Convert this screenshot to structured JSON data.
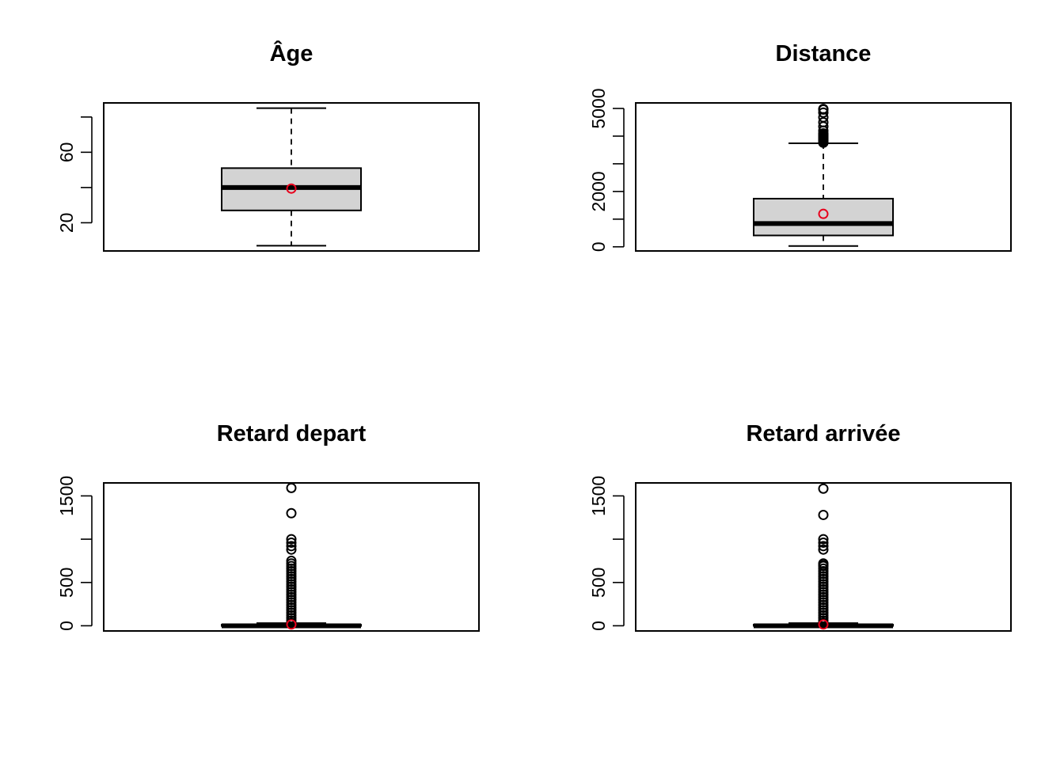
{
  "colors": {
    "box_fill": "#d3d3d3",
    "mean_point": "#e8001c",
    "stroke": "#000000",
    "background": "#ffffff"
  },
  "chart_data": [
    {
      "type": "boxplot",
      "title": "Âge",
      "xlabel": "",
      "ylabel": "",
      "ylim": [
        4,
        88
      ],
      "yticks": [
        20,
        40,
        60,
        80
      ],
      "ytick_labels": [
        "20",
        "",
        "60",
        ""
      ],
      "min": 7,
      "q1": 27,
      "median": 40,
      "q3": 51,
      "max": 85,
      "mean": 39.4,
      "outliers": []
    },
    {
      "type": "boxplot",
      "title": "Distance",
      "xlabel": "",
      "ylabel": "",
      "ylim": [
        -150,
        5200
      ],
      "yticks": [
        0,
        1000,
        2000,
        3000,
        4000,
        5000
      ],
      "ytick_labels": [
        "0",
        "",
        "2000",
        "",
        "",
        "5000"
      ],
      "min": 30,
      "q1": 410,
      "median": 840,
      "q3": 1740,
      "max": 3740,
      "mean": 1190,
      "outliers": [
        3760,
        3790,
        3830,
        3860,
        3900,
        3930,
        3960,
        3990,
        4020,
        4060,
        4100,
        4200,
        4350,
        4500,
        4680,
        4850,
        4960,
        4983
      ]
    },
    {
      "type": "boxplot",
      "title": "Retard depart",
      "xlabel": "",
      "ylabel": "",
      "ylim": [
        -60,
        1650
      ],
      "yticks": [
        0,
        500,
        1000,
        1500
      ],
      "ytick_labels": [
        "0",
        "500",
        "",
        "1500"
      ],
      "min": 0,
      "q1": 0,
      "median": 0,
      "q3": 12,
      "max": 30,
      "mean": 15,
      "outliers": [
        35,
        60,
        90,
        120,
        150,
        180,
        210,
        240,
        270,
        300,
        330,
        360,
        390,
        420,
        450,
        480,
        510,
        540,
        570,
        600,
        630,
        660,
        690,
        720,
        750,
        880,
        920,
        960,
        1000,
        1300,
        1592
      ]
    },
    {
      "type": "boxplot",
      "title": "Retard arrivée",
      "xlabel": "",
      "ylabel": "",
      "ylim": [
        -60,
        1650
      ],
      "yticks": [
        0,
        500,
        1000,
        1500
      ],
      "ytick_labels": [
        "0",
        "500",
        "",
        "1500"
      ],
      "min": 0,
      "q1": 0,
      "median": 0,
      "q3": 13,
      "max": 30,
      "mean": 15,
      "outliers": [
        35,
        60,
        90,
        120,
        150,
        180,
        210,
        240,
        270,
        300,
        330,
        360,
        390,
        420,
        450,
        480,
        510,
        540,
        570,
        600,
        630,
        660,
        690,
        700,
        720,
        880,
        920,
        960,
        1000,
        1280,
        1584
      ]
    }
  ]
}
